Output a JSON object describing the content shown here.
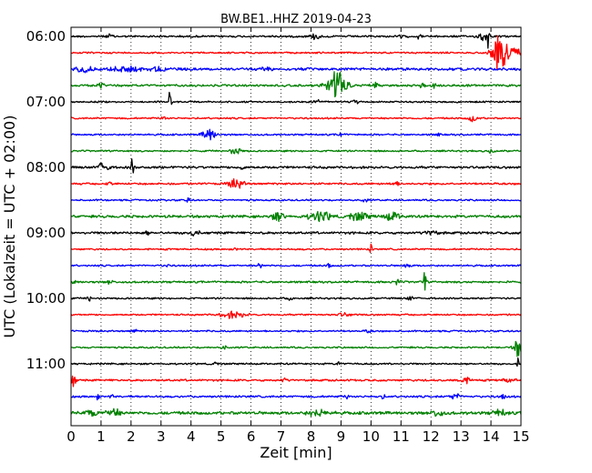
{
  "chart_data": {
    "type": "line",
    "title": "BW.BE1..HHZ 2019-04-23",
    "xlabel": "Zeit  [min]",
    "ylabel": "UTC (Lokalzeit = UTC + 02:00)",
    "xlim": [
      0,
      15
    ],
    "x_ticks": [
      "0",
      "1",
      "2",
      "3",
      "4",
      "5",
      "6",
      "7",
      "8",
      "9",
      "10",
      "11",
      "12",
      "13",
      "14",
      "15"
    ],
    "y_tick_labels": [
      "06:00",
      "07:00",
      "08:00",
      "09:00",
      "10:00",
      "11:00"
    ],
    "trace_interval_min": 15,
    "grid": "vertical dotted",
    "colors": [
      "#000000",
      "#ff0000",
      "#0000ff",
      "#008000"
    ],
    "series": [
      {
        "start": "06:00",
        "color": "#000000",
        "noise": 1.2,
        "events": [
          {
            "t": 1.3,
            "a": 2.5,
            "d": 0.1
          },
          {
            "t": 8.1,
            "a": 2,
            "d": 0.15
          },
          {
            "t": 8.2,
            "a": 2,
            "d": 0.15
          },
          {
            "t": 11.0,
            "a": 4,
            "d": 0.05
          },
          {
            "t": 11.6,
            "a": 3,
            "d": 0.05
          },
          {
            "t": 13.7,
            "a": 7,
            "d": 0.12
          },
          {
            "t": 13.9,
            "a": 14,
            "d": 0.05
          }
        ]
      },
      {
        "start": "06:15",
        "color": "#ff0000",
        "noise": 1.0,
        "events": [
          {
            "t": 14.3,
            "a": 22,
            "d": 0.25
          },
          {
            "t": 14.75,
            "a": 6,
            "d": 0.3
          }
        ]
      },
      {
        "start": "06:30",
        "color": "#0000ff",
        "noise": 1.6,
        "events": [
          {
            "t": 0.4,
            "a": 3,
            "d": 0.3
          },
          {
            "t": 1.8,
            "a": 2.5,
            "d": 0.5
          },
          {
            "t": 3.0,
            "a": 2.5,
            "d": 0.3
          },
          {
            "t": 6.5,
            "a": 2,
            "d": 0.2
          }
        ]
      },
      {
        "start": "06:45",
        "color": "#008000",
        "noise": 1.3,
        "events": [
          {
            "t": 1.0,
            "a": 3,
            "d": 0.1
          },
          {
            "t": 8.7,
            "a": 8,
            "d": 0.25
          },
          {
            "t": 8.95,
            "a": 18,
            "d": 0.25
          },
          {
            "t": 10.1,
            "a": 3,
            "d": 0.15
          },
          {
            "t": 11.7,
            "a": 4,
            "d": 0.08
          },
          {
            "t": 12.1,
            "a": 3,
            "d": 0.08
          }
        ]
      },
      {
        "start": "07:00",
        "color": "#000000",
        "noise": 1.0,
        "events": [
          {
            "t": 3.3,
            "a": 18,
            "d": 0.04
          },
          {
            "t": 8.2,
            "a": 3,
            "d": 0.1
          },
          {
            "t": 9.5,
            "a": 2.5,
            "d": 0.1
          }
        ]
      },
      {
        "start": "07:15",
        "color": "#ff0000",
        "noise": 1.0,
        "events": [
          {
            "t": 13.4,
            "a": 4,
            "d": 0.15
          },
          {
            "t": 3.1,
            "a": 2,
            "d": 0.1
          }
        ]
      },
      {
        "start": "07:30",
        "color": "#0000ff",
        "noise": 1.0,
        "events": [
          {
            "t": 4.6,
            "a": 8,
            "d": 0.2
          },
          {
            "t": 9.0,
            "a": 2.5,
            "d": 0.1
          },
          {
            "t": 12.2,
            "a": 3,
            "d": 0.08
          }
        ]
      },
      {
        "start": "07:45",
        "color": "#008000",
        "noise": 1.0,
        "events": [
          {
            "t": 5.5,
            "a": 4,
            "d": 0.2
          },
          {
            "t": 14.0,
            "a": 3,
            "d": 0.08
          }
        ]
      },
      {
        "start": "08:00",
        "color": "#000000",
        "noise": 1.4,
        "events": [
          {
            "t": 1.1,
            "a": 8,
            "d": 0.15
          },
          {
            "t": 2.05,
            "a": 16,
            "d": 0.04
          },
          {
            "t": 5.7,
            "a": 3,
            "d": 0.08
          }
        ]
      },
      {
        "start": "08:15",
        "color": "#ff0000",
        "noise": 1.2,
        "events": [
          {
            "t": 5.5,
            "a": 6,
            "d": 0.25
          },
          {
            "t": 1.3,
            "a": 2,
            "d": 0.1
          },
          {
            "t": 10.8,
            "a": 2,
            "d": 0.15
          }
        ]
      },
      {
        "start": "08:30",
        "color": "#0000ff",
        "noise": 1.0,
        "events": [
          {
            "t": 3.9,
            "a": 4,
            "d": 0.05
          },
          {
            "t": 9.8,
            "a": 2,
            "d": 0.1
          }
        ]
      },
      {
        "start": "08:45",
        "color": "#008000",
        "noise": 1.6,
        "events": [
          {
            "t": 6.9,
            "a": 5,
            "d": 0.2
          },
          {
            "t": 8.3,
            "a": 6,
            "d": 0.35
          },
          {
            "t": 9.6,
            "a": 5,
            "d": 0.3
          },
          {
            "t": 10.7,
            "a": 5,
            "d": 0.25
          }
        ]
      },
      {
        "start": "09:00",
        "color": "#000000",
        "noise": 1.4,
        "events": [
          {
            "t": 4.1,
            "a": 4,
            "d": 0.15
          },
          {
            "t": 12.0,
            "a": 3,
            "d": 0.2
          },
          {
            "t": 2.5,
            "a": 2.5,
            "d": 0.1
          }
        ]
      },
      {
        "start": "09:15",
        "color": "#ff0000",
        "noise": 1.0,
        "events": [
          {
            "t": 10.0,
            "a": 6,
            "d": 0.05
          },
          {
            "t": 5.5,
            "a": 2,
            "d": 0.1
          }
        ]
      },
      {
        "start": "09:30",
        "color": "#0000ff",
        "noise": 1.0,
        "events": [
          {
            "t": 3.2,
            "a": 4,
            "d": 0.05
          },
          {
            "t": 6.3,
            "a": 7,
            "d": 0.05
          },
          {
            "t": 8.6,
            "a": 4,
            "d": 0.05
          },
          {
            "t": 11.2,
            "a": 2.5,
            "d": 0.1
          }
        ]
      },
      {
        "start": "09:45",
        "color": "#008000",
        "noise": 1.2,
        "events": [
          {
            "t": 0.1,
            "a": 5,
            "d": 0.05
          },
          {
            "t": 1.3,
            "a": 3,
            "d": 0.1
          },
          {
            "t": 10.9,
            "a": 8,
            "d": 0.05
          },
          {
            "t": 11.8,
            "a": 16,
            "d": 0.04
          }
        ]
      },
      {
        "start": "10:00",
        "color": "#000000",
        "noise": 1.0,
        "events": [
          {
            "t": 0.6,
            "a": 3,
            "d": 0.08
          },
          {
            "t": 11.3,
            "a": 3,
            "d": 0.08
          },
          {
            "t": 7.3,
            "a": 2,
            "d": 0.1
          }
        ]
      },
      {
        "start": "10:15",
        "color": "#ff0000",
        "noise": 1.0,
        "events": [
          {
            "t": 5.4,
            "a": 4,
            "d": 0.4
          },
          {
            "t": 9.1,
            "a": 2,
            "d": 0.2
          }
        ]
      },
      {
        "start": "10:30",
        "color": "#0000ff",
        "noise": 1.0,
        "events": [
          {
            "t": 2.1,
            "a": 2,
            "d": 0.1
          },
          {
            "t": 9.9,
            "a": 2,
            "d": 0.1
          }
        ]
      },
      {
        "start": "10:45",
        "color": "#008000",
        "noise": 1.0,
        "events": [
          {
            "t": 5.1,
            "a": 3,
            "d": 0.08
          },
          {
            "t": 14.95,
            "a": 14,
            "d": 0.15
          }
        ]
      },
      {
        "start": "11:00",
        "color": "#000000",
        "noise": 1.0,
        "events": [
          {
            "t": 4.8,
            "a": 4,
            "d": 0.05
          },
          {
            "t": 8.9,
            "a": 4,
            "d": 0.05
          },
          {
            "t": 14.9,
            "a": 6,
            "d": 0.05
          }
        ]
      },
      {
        "start": "11:15",
        "color": "#ff0000",
        "noise": 1.2,
        "events": [
          {
            "t": 0.05,
            "a": 14,
            "d": 0.08
          },
          {
            "t": 7.1,
            "a": 2.5,
            "d": 0.08
          },
          {
            "t": 13.1,
            "a": 4,
            "d": 0.2
          },
          {
            "t": 14.6,
            "a": 3,
            "d": 0.2
          }
        ]
      },
      {
        "start": "11:30",
        "color": "#0000ff",
        "noise": 1.2,
        "events": [
          {
            "t": 0.9,
            "a": 4,
            "d": 0.05
          },
          {
            "t": 1.35,
            "a": 3,
            "d": 0.05
          },
          {
            "t": 9.2,
            "a": 3,
            "d": 0.05
          },
          {
            "t": 10.4,
            "a": 3,
            "d": 0.05
          },
          {
            "t": 12.8,
            "a": 4,
            "d": 0.15
          },
          {
            "t": 14.4,
            "a": 3,
            "d": 0.1
          }
        ]
      },
      {
        "start": "11:45",
        "color": "#008000",
        "noise": 1.8,
        "events": [
          {
            "t": 0.7,
            "a": 4,
            "d": 0.2
          },
          {
            "t": 1.4,
            "a": 6,
            "d": 0.2
          },
          {
            "t": 8.2,
            "a": 4,
            "d": 0.3
          },
          {
            "t": 12.2,
            "a": 4,
            "d": 0.2
          },
          {
            "t": 14.3,
            "a": 4,
            "d": 0.2
          }
        ]
      }
    ]
  }
}
